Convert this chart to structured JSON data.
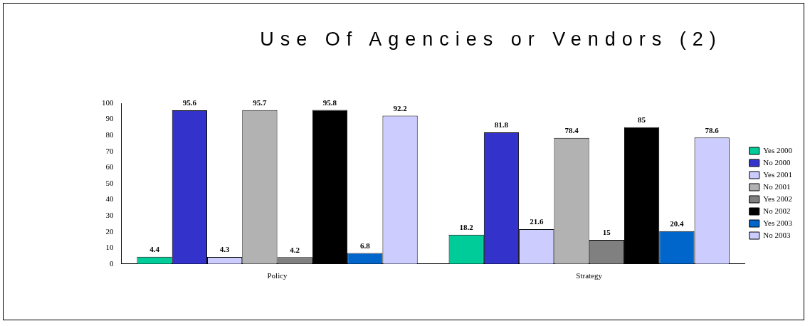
{
  "chart_data": {
    "type": "bar",
    "title": "Use Of Agencies or Vendors (2)",
    "categories": [
      "Policy",
      "Strategy"
    ],
    "series": [
      {
        "name": "Yes 2000",
        "color": "#00cc99",
        "values": [
          4.4,
          18.2
        ]
      },
      {
        "name": "No 2000",
        "color": "#3333cc",
        "values": [
          95.6,
          81.8
        ]
      },
      {
        "name": "Yes 2001",
        "color": "#ccccff",
        "values": [
          4.3,
          21.6
        ]
      },
      {
        "name": "No 2001",
        "color": "#b2b2b2",
        "values": [
          95.7,
          78.4
        ]
      },
      {
        "name": "Yes 2002",
        "color": "#808080",
        "values": [
          4.2,
          15
        ]
      },
      {
        "name": "No 2002",
        "color": "#000000",
        "values": [
          95.8,
          85
        ]
      },
      {
        "name": "Yes 2003",
        "color": "#0066cc",
        "values": [
          6.8,
          20.4
        ]
      },
      {
        "name": "No 2003",
        "color": "#ccccff",
        "values": [
          92.2,
          78.6
        ]
      }
    ],
    "ylim": [
      0,
      100
    ],
    "yticks": [
      0,
      10,
      20,
      30,
      40,
      50,
      60,
      70,
      80,
      90,
      100
    ],
    "grid": false,
    "legend": "right",
    "data_labels": true
  }
}
